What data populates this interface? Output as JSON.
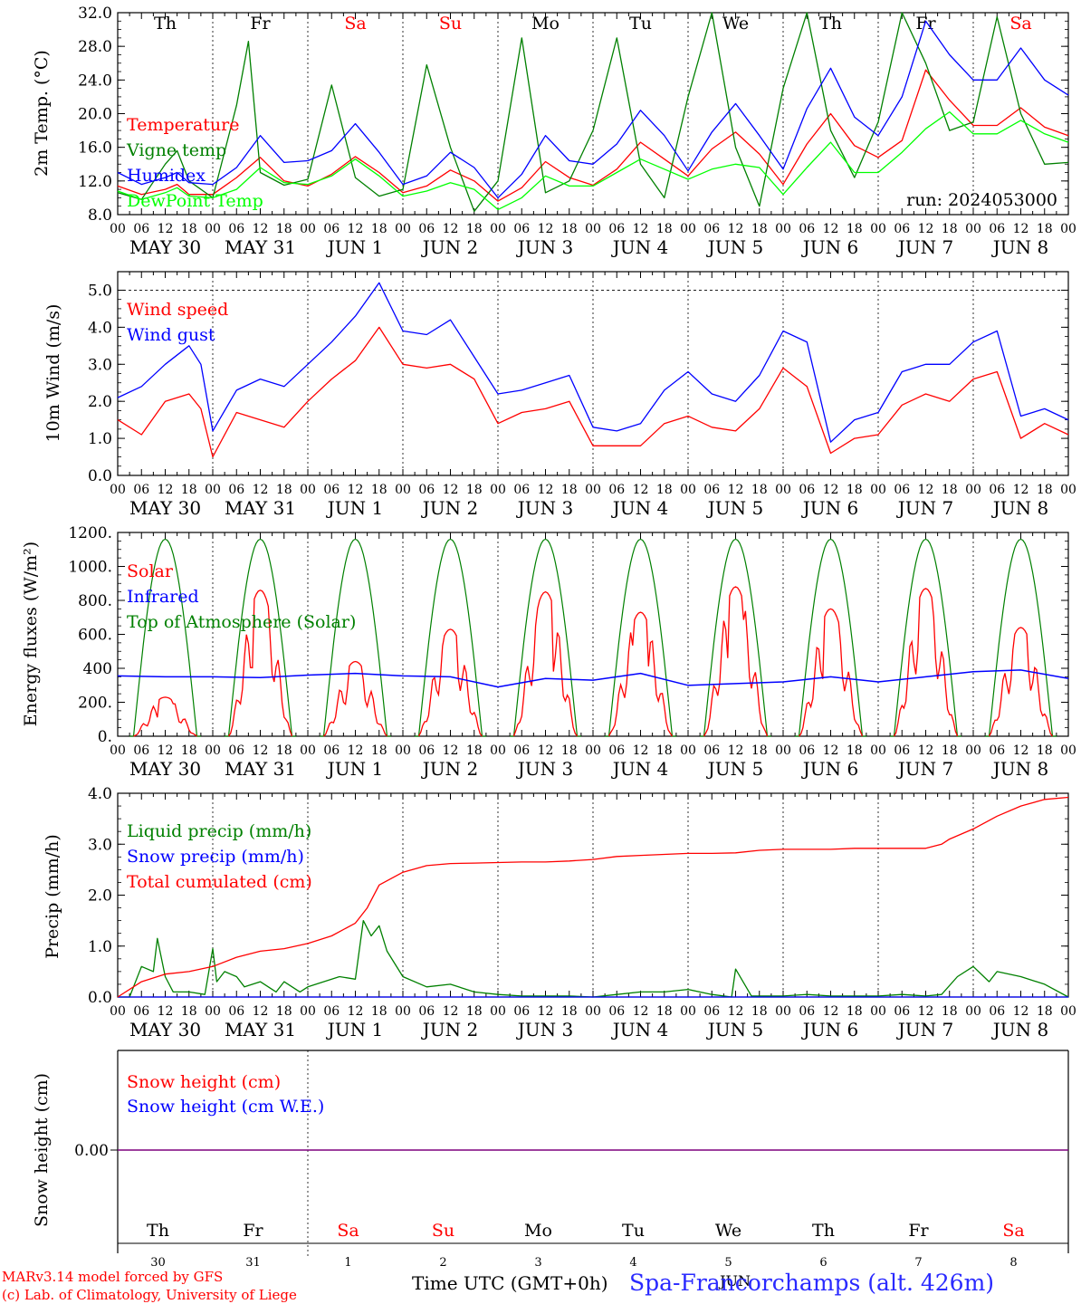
{
  "chart_data": [
    {
      "type": "line",
      "panel": "temperature",
      "ylabel": "2m Temp. (°C)",
      "ylim": [
        8,
        32
      ],
      "yticks": [
        "8.0",
        "12.0",
        "16.0",
        "20.0",
        "24.0",
        "28.0",
        "32.0"
      ],
      "annotation": "run: 2024053000",
      "days": [
        {
          "label": "Th",
          "weekend": false
        },
        {
          "label": "Fr",
          "weekend": false
        },
        {
          "label": "Sa",
          "weekend": true
        },
        {
          "label": "Su",
          "weekend": true
        },
        {
          "label": "Mo",
          "weekend": false
        },
        {
          "label": "Tu",
          "weekend": false
        },
        {
          "label": "We",
          "weekend": false
        },
        {
          "label": "Th",
          "weekend": false
        },
        {
          "label": "Fr",
          "weekend": false
        },
        {
          "label": "Sa",
          "weekend": true
        }
      ],
      "hour_ticks": [
        "00",
        "06",
        "12",
        "18"
      ],
      "date_labels": [
        "MAY 30",
        "MAY 31",
        "JUN  1",
        "JUN  2",
        "JUN  3",
        "JUN  4",
        "JUN  5",
        "JUN  6",
        "JUN  7",
        "JUN  8"
      ],
      "series": [
        {
          "name": "Temperature",
          "color": "#ff0000",
          "x": [
            0,
            6,
            12,
            15,
            18,
            24,
            30,
            36,
            42,
            48,
            54,
            60,
            66,
            72,
            78,
            84,
            90,
            96,
            102,
            108,
            114,
            120,
            126,
            132,
            138,
            144,
            150,
            156,
            162,
            168,
            174,
            180,
            186,
            192,
            198,
            204,
            210,
            216,
            222,
            228,
            234,
            240
          ],
          "values": [
            11.4,
            10.4,
            11.0,
            11.6,
            10.4,
            10.4,
            12.4,
            14.8,
            12.0,
            11.4,
            12.8,
            14.9,
            13.0,
            10.6,
            11.4,
            13.3,
            12.0,
            9.6,
            11.2,
            14.3,
            12.4,
            11.5,
            13.4,
            16.6,
            14.6,
            12.6,
            15.8,
            17.8,
            15.2,
            11.6,
            16.4,
            20.0,
            16.2,
            14.8,
            16.8,
            25.2,
            21.6,
            18.6,
            18.6,
            20.7,
            18.4,
            17.4
          ]
        },
        {
          "name": "Vigne temp",
          "color": "#008000",
          "x": [
            0,
            6,
            12,
            15,
            18,
            24,
            30,
            33,
            36,
            42,
            48,
            54,
            60,
            66,
            72,
            78,
            84,
            90,
            96,
            102,
            108,
            114,
            120,
            126,
            132,
            138,
            144,
            150,
            156,
            162,
            168,
            174,
            180,
            186,
            192,
            198,
            204,
            210,
            216,
            222,
            228,
            234,
            240
          ],
          "values": [
            10.6,
            9.8,
            14.0,
            15.6,
            12.0,
            10.0,
            21.0,
            28.6,
            13.0,
            11.5,
            12.2,
            23.4,
            12.4,
            10.2,
            11.0,
            25.8,
            16.0,
            8.4,
            12.0,
            29.0,
            10.6,
            12.0,
            18.0,
            29.0,
            14.0,
            10.0,
            22.0,
            32.0,
            16.0,
            9.0,
            23.0,
            32.0,
            18.0,
            12.4,
            19.0,
            32.0,
            26.0,
            18.0,
            19.0,
            31.5,
            20.0,
            14.0,
            14.2
          ]
        },
        {
          "name": "Humidex",
          "color": "#0000ff",
          "x": [
            0,
            6,
            12,
            15,
            18,
            24,
            30,
            36,
            42,
            48,
            54,
            60,
            66,
            72,
            78,
            84,
            90,
            96,
            102,
            108,
            114,
            120,
            126,
            132,
            138,
            144,
            150,
            156,
            162,
            168,
            174,
            180,
            186,
            192,
            198,
            204,
            210,
            216,
            222,
            228,
            234,
            240
          ],
          "values": [
            13.0,
            11.6,
            12.4,
            13.0,
            11.8,
            11.6,
            13.6,
            17.4,
            14.2,
            14.4,
            15.6,
            18.8,
            15.4,
            11.6,
            12.6,
            15.4,
            13.6,
            10.0,
            12.8,
            17.4,
            14.4,
            14.0,
            16.4,
            20.4,
            17.4,
            13.2,
            17.8,
            21.2,
            17.4,
            13.4,
            20.6,
            25.4,
            19.6,
            17.4,
            22.0,
            31.0,
            27.0,
            24.0,
            24.0,
            27.8,
            24.0,
            22.2
          ]
        },
        {
          "name": "DewPoint Temp",
          "color": "#00ff00",
          "x": [
            0,
            6,
            12,
            15,
            18,
            24,
            30,
            36,
            42,
            48,
            54,
            60,
            66,
            72,
            78,
            84,
            90,
            96,
            102,
            108,
            114,
            120,
            126,
            132,
            138,
            144,
            150,
            156,
            162,
            168,
            174,
            180,
            186,
            192,
            198,
            204,
            210,
            216,
            222,
            228,
            234,
            240
          ],
          "values": [
            10.8,
            9.8,
            10.6,
            11.2,
            10.2,
            10.0,
            11.0,
            13.6,
            11.8,
            11.6,
            12.6,
            14.6,
            12.6,
            10.2,
            10.8,
            11.8,
            11.0,
            8.6,
            10.0,
            12.6,
            11.4,
            11.4,
            13.0,
            14.6,
            13.4,
            12.2,
            13.4,
            14.0,
            13.6,
            10.4,
            13.6,
            16.6,
            13.0,
            13.0,
            15.4,
            18.2,
            20.2,
            17.6,
            17.6,
            19.2,
            17.6,
            16.6
          ]
        }
      ]
    },
    {
      "type": "line",
      "panel": "wind",
      "ylabel": "10m Wind (m/s)",
      "ylim": [
        0,
        5.5
      ],
      "yticks": [
        "0.0",
        "1.0",
        "2.0",
        "3.0",
        "4.0",
        "5.0"
      ],
      "reference_line": 5.0,
      "hour_ticks": [
        "00",
        "06",
        "12",
        "18"
      ],
      "date_labels": [
        "MAY 30",
        "MAY 31",
        "JUN  1",
        "JUN  2",
        "JUN  3",
        "JUN  4",
        "JUN  5",
        "JUN  6",
        "JUN  7",
        "JUN  8"
      ],
      "series": [
        {
          "name": "Wind speed",
          "color": "#ff0000",
          "x": [
            0,
            6,
            12,
            18,
            21,
            24,
            30,
            36,
            42,
            48,
            54,
            60,
            66,
            72,
            78,
            84,
            90,
            96,
            102,
            108,
            114,
            120,
            126,
            132,
            138,
            144,
            150,
            156,
            162,
            168,
            174,
            180,
            186,
            192,
            198,
            204,
            210,
            216,
            222,
            228,
            234,
            240
          ],
          "values": [
            1.5,
            1.1,
            2.0,
            2.2,
            1.8,
            0.5,
            1.7,
            1.5,
            1.3,
            2.0,
            2.6,
            3.1,
            4.0,
            3.0,
            2.9,
            3.0,
            2.6,
            1.4,
            1.7,
            1.8,
            2.0,
            0.8,
            0.8,
            0.8,
            1.4,
            1.6,
            1.3,
            1.2,
            1.8,
            2.9,
            2.4,
            0.6,
            1.0,
            1.1,
            1.9,
            2.2,
            2.0,
            2.6,
            2.8,
            1.0,
            1.4,
            1.1
          ]
        },
        {
          "name": "Wind gust",
          "color": "#0000ff",
          "x": [
            0,
            6,
            12,
            18,
            21,
            24,
            30,
            36,
            42,
            48,
            54,
            60,
            66,
            72,
            78,
            84,
            90,
            96,
            102,
            108,
            114,
            120,
            126,
            132,
            138,
            144,
            150,
            156,
            162,
            168,
            174,
            180,
            186,
            192,
            198,
            204,
            210,
            216,
            222,
            228,
            234,
            240
          ],
          "values": [
            2.1,
            2.4,
            3.0,
            3.5,
            3.0,
            1.2,
            2.3,
            2.6,
            2.4,
            3.0,
            3.6,
            4.3,
            5.2,
            3.9,
            3.8,
            4.2,
            3.2,
            2.2,
            2.3,
            2.5,
            2.7,
            1.3,
            1.2,
            1.4,
            2.3,
            2.8,
            2.2,
            2.0,
            2.7,
            3.9,
            3.6,
            0.9,
            1.5,
            1.7,
            2.8,
            3.0,
            3.0,
            3.6,
            3.9,
            1.6,
            1.8,
            1.5
          ]
        }
      ]
    },
    {
      "type": "line",
      "panel": "energy",
      "ylabel": "Energy fluxes (W/m²)",
      "ylim": [
        0,
        1200
      ],
      "yticks": [
        "0.",
        "200.",
        "400",
        "600.",
        "800.",
        "1000.",
        "1200."
      ],
      "hour_ticks": [
        "00",
        "06",
        "12",
        "18"
      ],
      "date_labels": [
        "MAY 30",
        "MAY 31",
        "JUN  1",
        "JUN  2",
        "JUN  3",
        "JUN  4",
        "JUN  5",
        "JUN  6",
        "JUN  7",
        "JUN  8"
      ],
      "toa_peak": 1160,
      "solar_peaks": [
        230,
        860,
        440,
        630,
        850,
        730,
        880,
        750,
        870,
        640
      ],
      "series": [
        {
          "name": "Solar",
          "color": "#ff0000"
        },
        {
          "name": "Infrared",
          "color": "#0000ff",
          "x": [
            0,
            12,
            24,
            36,
            48,
            60,
            72,
            84,
            96,
            108,
            120,
            132,
            144,
            156,
            168,
            180,
            192,
            204,
            216,
            228,
            240
          ],
          "values": [
            355,
            350,
            350,
            345,
            360,
            370,
            355,
            350,
            290,
            340,
            330,
            370,
            300,
            310,
            320,
            350,
            320,
            350,
            380,
            390,
            340
          ]
        },
        {
          "name": "Top of Atmosphere (Solar)",
          "color": "#008000"
        }
      ]
    },
    {
      "type": "line",
      "panel": "precip",
      "ylabel": "Precip (mm/h)",
      "ylim": [
        0,
        4
      ],
      "yticks": [
        "0.0",
        "1.0",
        "2.0",
        "3.0",
        "4.0"
      ],
      "hour_ticks": [
        "00",
        "06",
        "12",
        "18"
      ],
      "date_labels": [
        "MAY 30",
        "MAY 31",
        "JUN  1",
        "JUN  2",
        "JUN  3",
        "JUN  4",
        "JUN  5",
        "JUN  6",
        "JUN  7",
        "JUN  8"
      ],
      "series": [
        {
          "name": "Liquid precip (mm/h)",
          "color": "#008000",
          "x": [
            0,
            3,
            6,
            9,
            10,
            12,
            14,
            18,
            22,
            24,
            25,
            27,
            30,
            32,
            36,
            40,
            42,
            46,
            48,
            52,
            56,
            60,
            62,
            64,
            66,
            68,
            72,
            78,
            84,
            90,
            96,
            102,
            108,
            114,
            120,
            126,
            132,
            138,
            144,
            150,
            155,
            156,
            160,
            168,
            174,
            180,
            186,
            192,
            198,
            204,
            208,
            212,
            216,
            220,
            222,
            228,
            234,
            240
          ],
          "values": [
            0.0,
            0.0,
            0.6,
            0.5,
            1.15,
            0.4,
            0.1,
            0.1,
            0.05,
            0.95,
            0.3,
            0.5,
            0.4,
            0.2,
            0.3,
            0.1,
            0.3,
            0.1,
            0.2,
            0.3,
            0.4,
            0.35,
            1.5,
            1.2,
            1.4,
            0.9,
            0.4,
            0.2,
            0.25,
            0.1,
            0.05,
            0.02,
            0.02,
            0.02,
            0.0,
            0.05,
            0.1,
            0.1,
            0.15,
            0.05,
            0.0,
            0.55,
            0.02,
            0.02,
            0.05,
            0.02,
            0.02,
            0.02,
            0.05,
            0.02,
            0.05,
            0.4,
            0.6,
            0.3,
            0.5,
            0.4,
            0.25,
            0.0
          ]
        },
        {
          "name": "Snow precip (mm/h)",
          "color": "#0000ff",
          "x": [
            0,
            240
          ],
          "values": [
            0,
            0
          ]
        },
        {
          "name": "Total cumulated (cm)",
          "color": "#ff0000",
          "x": [
            0,
            6,
            12,
            18,
            24,
            30,
            36,
            42,
            48,
            54,
            60,
            63,
            66,
            72,
            78,
            84,
            90,
            96,
            102,
            108,
            114,
            120,
            126,
            132,
            138,
            144,
            150,
            156,
            162,
            168,
            174,
            180,
            186,
            192,
            198,
            204,
            208,
            210,
            216,
            222,
            228,
            234,
            240
          ],
          "values": [
            0.0,
            0.3,
            0.45,
            0.5,
            0.6,
            0.78,
            0.9,
            0.95,
            1.05,
            1.2,
            1.45,
            1.75,
            2.2,
            2.45,
            2.58,
            2.62,
            2.63,
            2.64,
            2.65,
            2.65,
            2.67,
            2.7,
            2.76,
            2.78,
            2.8,
            2.82,
            2.82,
            2.83,
            2.88,
            2.9,
            2.9,
            2.9,
            2.92,
            2.92,
            2.92,
            2.92,
            3.0,
            3.1,
            3.3,
            3.55,
            3.75,
            3.88,
            3.92
          ]
        }
      ]
    },
    {
      "type": "line",
      "panel": "snow",
      "ylabel": "Snow height (cm)",
      "yticks": [
        "0.00"
      ],
      "days": [
        {
          "label": "Th",
          "weekend": false
        },
        {
          "label": "Fr",
          "weekend": false
        },
        {
          "label": "Sa",
          "weekend": true
        },
        {
          "label": "Su",
          "weekend": true
        },
        {
          "label": "Mo",
          "weekend": false
        },
        {
          "label": "Tu",
          "weekend": false
        },
        {
          "label": "We",
          "weekend": false
        },
        {
          "label": "Th",
          "weekend": false
        },
        {
          "label": "Fr",
          "weekend": false
        },
        {
          "label": "Sa",
          "weekend": true
        }
      ],
      "day_numbers": [
        "30",
        "31",
        "1",
        "2",
        "3",
        "4",
        "5",
        "6",
        "7",
        "8"
      ],
      "month_label": "JUN",
      "series": [
        {
          "name": "Snow height (cm)",
          "color": "#ff0000",
          "x": [
            0,
            240
          ],
          "values": [
            0,
            0
          ]
        },
        {
          "name": "Snow height (cm W.E.)",
          "color": "#0000ff",
          "x": [
            0,
            240
          ],
          "values": [
            0,
            0
          ]
        }
      ]
    }
  ],
  "footer": {
    "credit_line1": "MARv3.14 model forced by GFS",
    "credit_line2": "(c) Lab. of Climatology, University of Liege",
    "xaxis_title": "Time UTC (GMT+0h)",
    "station": "Spa-Francorchamps (alt. 426m)"
  },
  "colors": {
    "axis": "#000000",
    "weekday": "#000000",
    "weekend": "#ff0000",
    "snow_line": "#7f007f"
  }
}
